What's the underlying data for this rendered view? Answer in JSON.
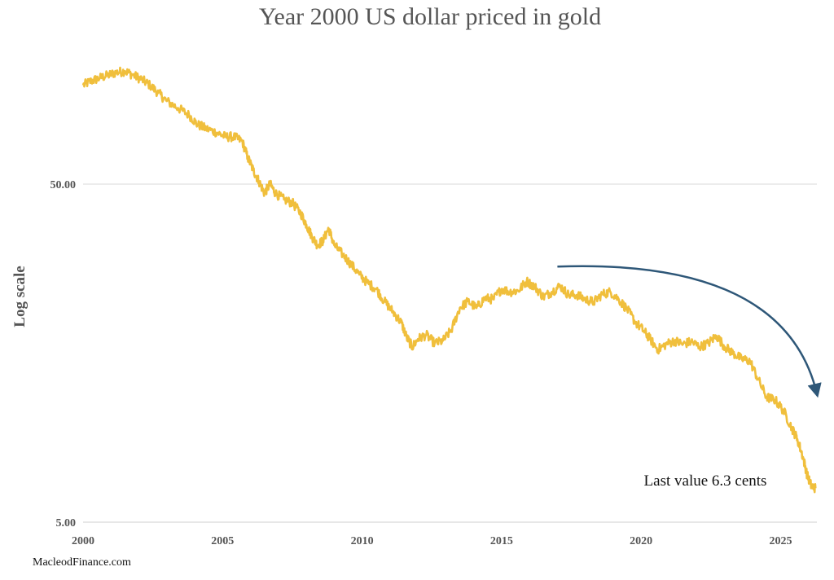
{
  "chart_data": {
    "type": "line",
    "title": "Year 2000 US dollar priced in gold",
    "xlabel": "",
    "ylabel": "Log scale",
    "yscale": "log",
    "ylim": [
      5.0,
      120.0
    ],
    "xlim": [
      2000,
      2026.3
    ],
    "grid": "horizontal gridline at 50.00",
    "legend": "none",
    "x_ticks": [
      "2000",
      "2005",
      "2010",
      "2015",
      "2020",
      "2025"
    ],
    "y_ticks": [
      "5.00",
      "50.00"
    ],
    "series": [
      {
        "color": "#f0bf3c",
        "x": [
          2000.0,
          2000.3,
          2000.6,
          2000.9,
          2001.2,
          2001.5,
          2001.8,
          2002.1,
          2002.4,
          2002.7,
          2003.0,
          2003.4,
          2003.8,
          2004.1,
          2004.4,
          2004.8,
          2005.1,
          2005.4,
          2005.7,
          2005.9,
          2006.1,
          2006.3,
          2006.5,
          2006.7,
          2006.9,
          2007.2,
          2007.5,
          2007.8,
          2008.0,
          2008.2,
          2008.4,
          2008.6,
          2008.8,
          2009.0,
          2009.3,
          2009.6,
          2009.9,
          2010.2,
          2010.5,
          2010.8,
          2011.1,
          2011.4,
          2011.6,
          2011.8,
          2012.0,
          2012.3,
          2012.6,
          2012.9,
          2013.2,
          2013.5,
          2013.8,
          2014.1,
          2014.4,
          2014.7,
          2015.0,
          2015.3,
          2015.6,
          2015.9,
          2016.2,
          2016.5,
          2016.8,
          2017.1,
          2017.4,
          2017.7,
          2018.0,
          2018.3,
          2018.6,
          2018.9,
          2019.2,
          2019.5,
          2019.8,
          2020.1,
          2020.3,
          2020.6,
          2020.9,
          2021.2,
          2021.5,
          2021.8,
          2022.1,
          2022.4,
          2022.7,
          2023.0,
          2023.3,
          2023.6,
          2023.9,
          2024.2,
          2024.5,
          2024.8,
          2025.1,
          2025.4,
          2025.6,
          2025.8,
          2025.95,
          2026.1,
          2026.25
        ],
        "y": [
          98,
          101,
          103,
          105,
          107,
          108,
          105,
          102,
          98,
          93,
          88,
          84,
          80,
          75,
          73,
          71,
          69,
          69,
          67,
          60,
          55,
          51,
          47,
          50,
          47,
          45,
          44,
          41,
          38,
          35,
          33,
          34,
          37,
          33,
          31,
          29,
          27,
          25.5,
          24.5,
          22.5,
          21,
          19.5,
          17.6,
          16.5,
          17.4,
          17.9,
          16.9,
          17.2,
          18.5,
          21.5,
          22.5,
          21.5,
          23,
          22.8,
          24.5,
          24,
          24.2,
          25.8,
          24.8,
          23.2,
          24,
          25,
          23.5,
          23.5,
          22.8,
          22.4,
          23.6,
          24,
          22.8,
          21.3,
          19.5,
          18.4,
          17.5,
          16.2,
          16.8,
          17.2,
          16.8,
          17.1,
          16.5,
          16.9,
          17.8,
          16.5,
          15.8,
          15.2,
          15,
          13.2,
          11.7,
          11.5,
          10.7,
          9.5,
          8.8,
          7.8,
          6.9,
          6.4,
          6.3
        ]
      }
    ],
    "annotations": [
      {
        "text": "Last value 6.3 cents",
        "arrow_from": [
          2017.0,
          28.5
        ],
        "arrow_to": [
          2026.3,
          12.0
        ]
      }
    ],
    "arrow_color": "#2e5778"
  },
  "footer": {
    "credit": "MacleodFinance.com"
  }
}
